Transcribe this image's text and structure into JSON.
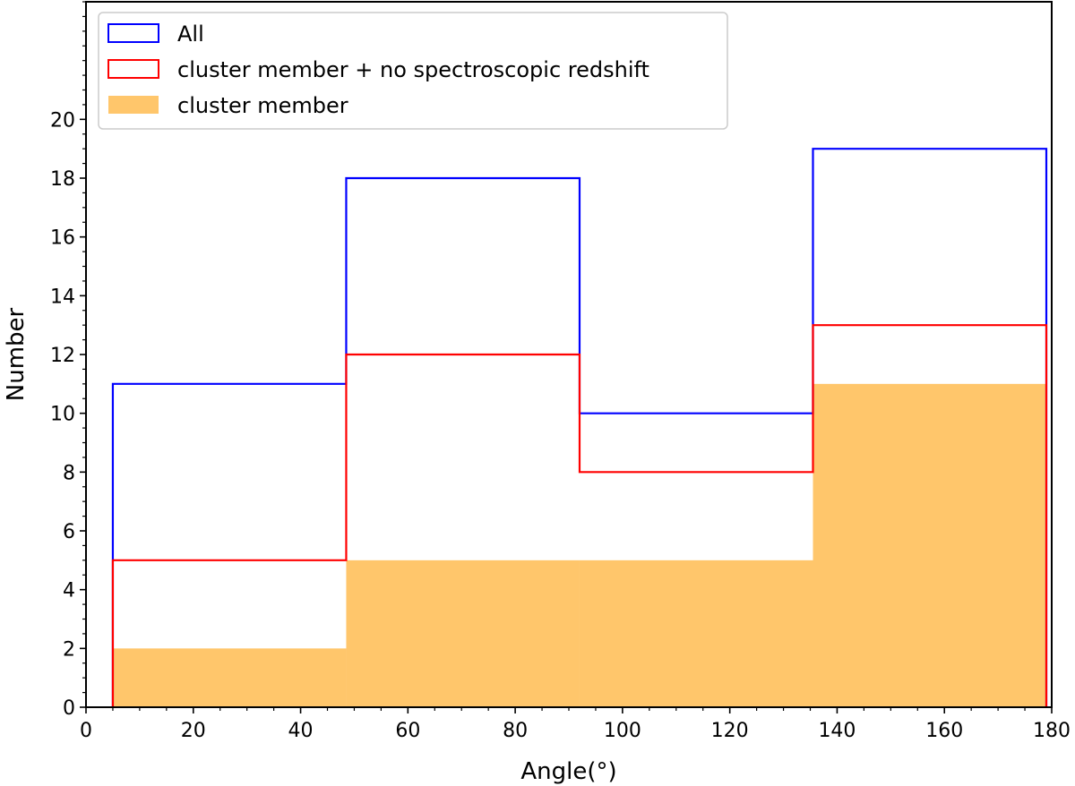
{
  "chart_data": {
    "type": "histogram",
    "title": "",
    "xlabel": "Angle(°)",
    "ylabel": "Number",
    "xlim": [
      0,
      180
    ],
    "ylim": [
      0,
      24
    ],
    "xticks": [
      0,
      20,
      40,
      60,
      80,
      100,
      120,
      140,
      160,
      180
    ],
    "yticks": [
      0,
      2,
      4,
      6,
      8,
      10,
      12,
      14,
      16,
      18,
      20
    ],
    "x_minor_step": 5,
    "y_minor_step": 0.5,
    "bin_edges": [
      5,
      48.5,
      92,
      135.5,
      179
    ],
    "legend_position": "upper-left",
    "series": [
      {
        "name": "All",
        "style": "step",
        "color": "#0000ff",
        "values": [
          11,
          18,
          10,
          19
        ]
      },
      {
        "name": "cluster member + no spectroscopic redshift",
        "style": "step",
        "color": "#ff0000",
        "values": [
          5,
          12,
          8,
          13
        ]
      },
      {
        "name": "cluster member",
        "style": "filled",
        "color": "#ffc66b",
        "values": [
          2,
          5,
          5,
          11
        ]
      }
    ]
  }
}
